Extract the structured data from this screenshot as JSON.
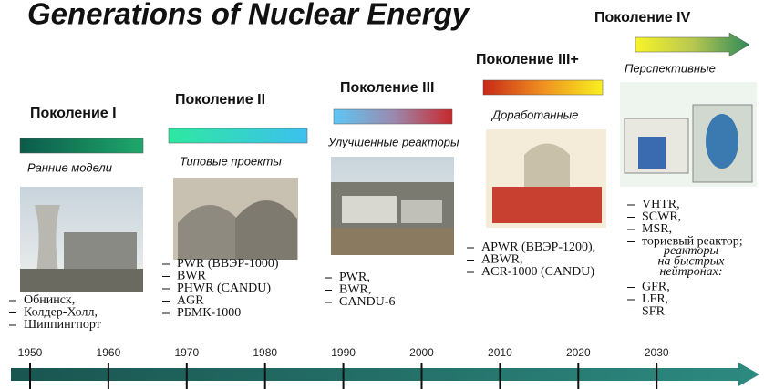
{
  "title": "Generations of Nuclear Energy",
  "generations": [
    {
      "label": "Поколение I",
      "subtitle": "Ранние модели",
      "items": [
        "Обнинск,",
        "Колдер-Холл,",
        "Шиппингпорт"
      ]
    },
    {
      "label": "Поколение II",
      "subtitle": "Типовые проекты",
      "items": [
        "PWR (ВВЭР-1000)",
        "BWR",
        "PHWR (CANDU)",
        "AGR",
        "РБМК-1000"
      ]
    },
    {
      "label": "Поколение III",
      "subtitle": "Улучшенные реакторы",
      "items": [
        "PWR,",
        "BWR,",
        "CANDU-6"
      ]
    },
    {
      "label": "Поколение III+",
      "subtitle": "Доработанные",
      "items": [
        "APWR (ВВЭР-1200),",
        "ABWR,",
        "ACR-1000 (CANDU)"
      ]
    },
    {
      "label": "Поколение IV",
      "subtitle": "Перспективные",
      "items": [
        "VHTR,",
        "SCWR,",
        "MSR,",
        "ториевый реактор;"
      ],
      "note": [
        "реакторы",
        "на быстрых",
        "нейтронах:"
      ],
      "items_more": [
        "GFR,",
        "LFR,",
        "SFR"
      ]
    }
  ],
  "timeline": {
    "years": [
      "1950",
      "1960",
      "1970",
      "1980",
      "1990",
      "2000",
      "2010",
      "2020",
      "2030"
    ]
  }
}
